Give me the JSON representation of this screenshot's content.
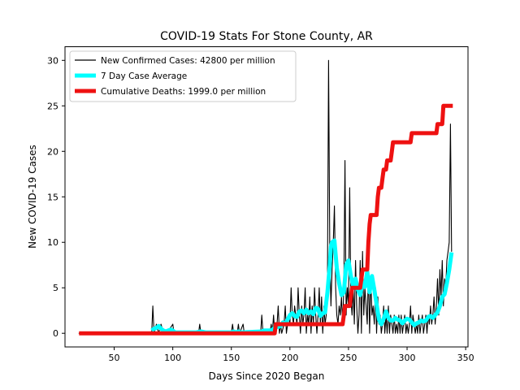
{
  "chart_data": {
    "type": "line",
    "title": "COVID-19 Stats For Stone County, AR",
    "xlabel": "Days Since 2020 Began",
    "ylabel": "New COVID-19 Cases",
    "xlim": [
      8,
      352
    ],
    "ylim": [
      -1.5,
      31.5
    ],
    "x_ticks": [
      50,
      100,
      150,
      200,
      250,
      300,
      350
    ],
    "y_ticks": [
      0,
      5,
      10,
      15,
      20,
      25,
      30
    ],
    "grid": false,
    "legend_position": "top-left",
    "series": [
      {
        "name": "New Confirmed Cases: 42800 per million",
        "color": "#000000",
        "style": "thin",
        "points": [
          [
            20,
            0
          ],
          [
            82,
            0
          ],
          [
            83,
            3
          ],
          [
            84,
            0
          ],
          [
            86,
            1
          ],
          [
            88,
            0
          ],
          [
            90,
            1
          ],
          [
            92,
            0
          ],
          [
            95,
            0
          ],
          [
            100,
            1
          ],
          [
            101,
            0
          ],
          [
            122,
            0
          ],
          [
            123,
            1
          ],
          [
            124,
            0
          ],
          [
            130,
            0
          ],
          [
            150,
            0
          ],
          [
            151,
            1
          ],
          [
            152,
            0
          ],
          [
            155,
            0
          ],
          [
            156,
            1
          ],
          [
            157,
            0
          ],
          [
            160,
            1
          ],
          [
            161,
            0
          ],
          [
            175,
            0
          ],
          [
            176,
            2
          ],
          [
            177,
            0
          ],
          [
            183,
            0
          ],
          [
            184,
            1
          ],
          [
            185,
            0
          ],
          [
            186,
            2
          ],
          [
            187,
            0
          ],
          [
            189,
            1
          ],
          [
            190,
            3
          ],
          [
            191,
            0
          ],
          [
            192,
            1
          ],
          [
            193,
            0
          ],
          [
            195,
            1
          ],
          [
            196,
            3
          ],
          [
            197,
            0
          ],
          [
            199,
            2
          ],
          [
            200,
            1
          ],
          [
            201,
            5
          ],
          [
            202,
            2
          ],
          [
            203,
            1
          ],
          [
            204,
            3
          ],
          [
            205,
            2
          ],
          [
            206,
            1
          ],
          [
            207,
            5
          ],
          [
            208,
            2
          ],
          [
            209,
            0
          ],
          [
            210,
            3
          ],
          [
            211,
            1
          ],
          [
            212,
            2
          ],
          [
            213,
            5
          ],
          [
            214,
            0
          ],
          [
            215,
            2
          ],
          [
            216,
            1
          ],
          [
            217,
            4
          ],
          [
            218,
            0
          ],
          [
            219,
            3
          ],
          [
            220,
            1
          ],
          [
            221,
            5
          ],
          [
            222,
            2
          ],
          [
            223,
            0
          ],
          [
            224,
            2
          ],
          [
            225,
            5
          ],
          [
            226,
            1
          ],
          [
            227,
            4
          ],
          [
            228,
            0
          ],
          [
            229,
            3
          ],
          [
            230,
            1
          ],
          [
            231,
            2
          ],
          [
            232,
            5
          ],
          [
            233,
            30
          ],
          [
            234,
            9
          ],
          [
            235,
            3
          ],
          [
            236,
            7
          ],
          [
            237,
            10
          ],
          [
            238,
            14
          ],
          [
            239,
            5
          ],
          [
            240,
            2
          ],
          [
            241,
            1
          ],
          [
            242,
            3
          ],
          [
            243,
            2
          ],
          [
            244,
            4
          ],
          [
            245,
            1
          ],
          [
            246,
            5
          ],
          [
            247,
            19
          ],
          [
            248,
            2
          ],
          [
            249,
            5
          ],
          [
            250,
            3
          ],
          [
            251,
            16
          ],
          [
            252,
            4
          ],
          [
            253,
            2
          ],
          [
            254,
            5
          ],
          [
            255,
            1
          ],
          [
            256,
            8
          ],
          [
            257,
            3
          ],
          [
            258,
            0
          ],
          [
            259,
            2
          ],
          [
            260,
            8
          ],
          [
            261,
            0
          ],
          [
            262,
            9
          ],
          [
            263,
            2
          ],
          [
            264,
            5
          ],
          [
            265,
            3
          ],
          [
            266,
            1
          ],
          [
            267,
            7
          ],
          [
            268,
            0
          ],
          [
            269,
            6
          ],
          [
            270,
            2
          ],
          [
            271,
            3
          ],
          [
            272,
            1
          ],
          [
            273,
            5
          ],
          [
            274,
            0
          ],
          [
            275,
            4
          ],
          [
            276,
            1
          ],
          [
            277,
            2
          ],
          [
            278,
            0
          ],
          [
            279,
            1
          ],
          [
            280,
            3
          ],
          [
            281,
            0
          ],
          [
            282,
            2
          ],
          [
            283,
            0
          ],
          [
            284,
            3
          ],
          [
            285,
            0
          ],
          [
            286,
            2
          ],
          [
            287,
            1
          ],
          [
            288,
            0
          ],
          [
            289,
            2
          ],
          [
            290,
            0
          ],
          [
            291,
            1
          ],
          [
            292,
            0
          ],
          [
            293,
            2
          ],
          [
            294,
            0
          ],
          [
            295,
            2
          ],
          [
            296,
            0
          ],
          [
            297,
            1
          ],
          [
            298,
            2
          ],
          [
            299,
            0
          ],
          [
            300,
            1
          ],
          [
            301,
            0
          ],
          [
            302,
            1
          ],
          [
            303,
            3
          ],
          [
            304,
            0
          ],
          [
            305,
            2
          ],
          [
            306,
            1
          ],
          [
            307,
            0
          ],
          [
            308,
            1
          ],
          [
            309,
            0
          ],
          [
            310,
            2
          ],
          [
            311,
            0
          ],
          [
            312,
            1
          ],
          [
            313,
            2
          ],
          [
            314,
            0
          ],
          [
            315,
            1
          ],
          [
            316,
            2
          ],
          [
            317,
            0
          ],
          [
            318,
            2
          ],
          [
            319,
            1
          ],
          [
            320,
            3
          ],
          [
            321,
            1
          ],
          [
            322,
            2
          ],
          [
            323,
            4
          ],
          [
            324,
            1
          ],
          [
            325,
            3
          ],
          [
            326,
            6
          ],
          [
            327,
            2
          ],
          [
            328,
            7
          ],
          [
            329,
            4
          ],
          [
            330,
            8
          ],
          [
            331,
            3
          ],
          [
            332,
            6
          ],
          [
            333,
            5
          ],
          [
            334,
            8
          ],
          [
            335,
            9
          ],
          [
            336,
            10
          ],
          [
            337,
            23
          ],
          [
            338,
            9
          ]
        ]
      },
      {
        "name": "7 Day Case Average",
        "color": "#00ffff",
        "style": "thick",
        "points": [
          [
            82,
            0.3
          ],
          [
            84,
            0.5
          ],
          [
            86,
            0.6
          ],
          [
            88,
            0.8
          ],
          [
            90,
            0.5
          ],
          [
            92,
            0.3
          ],
          [
            94,
            0.2
          ],
          [
            96,
            0.3
          ],
          [
            98,
            0.4
          ],
          [
            100,
            0.3
          ],
          [
            102,
            0.1
          ],
          [
            104,
            0.1
          ],
          [
            120,
            0.1
          ],
          [
            124,
            0.2
          ],
          [
            128,
            0.1
          ],
          [
            150,
            0.1
          ],
          [
            152,
            0.2
          ],
          [
            154,
            0.1
          ],
          [
            156,
            0.2
          ],
          [
            158,
            0.1
          ],
          [
            176,
            0.2
          ],
          [
            178,
            0.3
          ],
          [
            184,
            0.3
          ],
          [
            186,
            0.5
          ],
          [
            188,
            0.7
          ],
          [
            190,
            0.7
          ],
          [
            192,
            0.8
          ],
          [
            194,
            1.2
          ],
          [
            196,
            1.0
          ],
          [
            198,
            1.5
          ],
          [
            200,
            2.0
          ],
          [
            202,
            2.2
          ],
          [
            204,
            1.9
          ],
          [
            206,
            1.8
          ],
          [
            208,
            2.4
          ],
          [
            210,
            2.5
          ],
          [
            212,
            2.2
          ],
          [
            214,
            2.6
          ],
          [
            216,
            2.2
          ],
          [
            218,
            2.4
          ],
          [
            220,
            2.1
          ],
          [
            222,
            2.8
          ],
          [
            224,
            2.7
          ],
          [
            226,
            1.9
          ],
          [
            228,
            2.2
          ],
          [
            230,
            2.3
          ],
          [
            232,
            4.5
          ],
          [
            234,
            7.5
          ],
          [
            235,
            9.5
          ],
          [
            236,
            10.0
          ],
          [
            238,
            10.2
          ],
          [
            240,
            7.2
          ],
          [
            242,
            5.5
          ],
          [
            244,
            4.2
          ],
          [
            246,
            4.5
          ],
          [
            248,
            7.5
          ],
          [
            250,
            8.0
          ],
          [
            252,
            6.3
          ],
          [
            254,
            5.2
          ],
          [
            256,
            6.0
          ],
          [
            258,
            4.8
          ],
          [
            260,
            4.2
          ],
          [
            262,
            5.6
          ],
          [
            264,
            5.1
          ],
          [
            266,
            6.8
          ],
          [
            268,
            4.5
          ],
          [
            270,
            6.3
          ],
          [
            272,
            4.8
          ],
          [
            274,
            3.2
          ],
          [
            276,
            1.5
          ],
          [
            278,
            1.0
          ],
          [
            280,
            1.6
          ],
          [
            282,
            2.4
          ],
          [
            284,
            1.7
          ],
          [
            286,
            1.4
          ],
          [
            288,
            1.4
          ],
          [
            290,
            1.7
          ],
          [
            292,
            1.5
          ],
          [
            294,
            1.4
          ],
          [
            296,
            1.1
          ],
          [
            298,
            1.4
          ],
          [
            300,
            1.6
          ],
          [
            302,
            1.5
          ],
          [
            304,
            1.2
          ],
          [
            306,
            0.9
          ],
          [
            308,
            1.1
          ],
          [
            310,
            1.2
          ],
          [
            312,
            1.4
          ],
          [
            314,
            1.3
          ],
          [
            316,
            1.4
          ],
          [
            318,
            1.8
          ],
          [
            320,
            1.9
          ],
          [
            322,
            1.7
          ],
          [
            324,
            2.0
          ],
          [
            326,
            2.3
          ],
          [
            328,
            3.0
          ],
          [
            330,
            4.0
          ],
          [
            332,
            4.3
          ],
          [
            334,
            5.5
          ],
          [
            336,
            7.0
          ],
          [
            338,
            8.9
          ]
        ]
      },
      {
        "name": "Cumulative Deaths: 1999.0 per million",
        "color": "#ee1111",
        "style": "thick",
        "points": [
          [
            20,
            0
          ],
          [
            187,
            0
          ],
          [
            188,
            1
          ],
          [
            245,
            1
          ],
          [
            246,
            2
          ],
          [
            247,
            3
          ],
          [
            251,
            3
          ],
          [
            252,
            4
          ],
          [
            253,
            5
          ],
          [
            260,
            5
          ],
          [
            261,
            6
          ],
          [
            262,
            7
          ],
          [
            266,
            7
          ],
          [
            267,
            10
          ],
          [
            268,
            12
          ],
          [
            269,
            13
          ],
          [
            274,
            13
          ],
          [
            275,
            15
          ],
          [
            276,
            16
          ],
          [
            278,
            16
          ],
          [
            279,
            17
          ],
          [
            280,
            18
          ],
          [
            282,
            18
          ],
          [
            283,
            19
          ],
          [
            286,
            19
          ],
          [
            287,
            20
          ],
          [
            288,
            21
          ],
          [
            303,
            21
          ],
          [
            304,
            22
          ],
          [
            325,
            22
          ],
          [
            326,
            23
          ],
          [
            330,
            23
          ],
          [
            331,
            25
          ],
          [
            339,
            25
          ]
        ]
      }
    ]
  }
}
